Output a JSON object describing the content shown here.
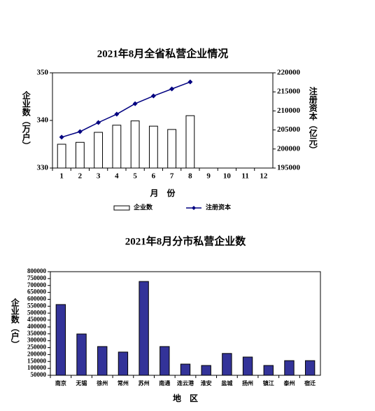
{
  "chart_data": [
    {
      "type": "bar",
      "title": "2021年8月全省私营企业情况",
      "x_label": "月　份",
      "y_label": "企业数（万户）",
      "y2_label": "注册资本（亿元）",
      "categories": [
        "1",
        "2",
        "3",
        "4",
        "5",
        "6",
        "7",
        "8",
        "9",
        "10",
        "11",
        "12"
      ],
      "series": [
        {
          "name": "企业数",
          "type": "bar",
          "color": "#ffffff",
          "values": [
            335.0,
            335.4,
            337.5,
            339.0,
            339.9,
            338.8,
            338.1,
            341.0,
            null,
            null,
            null,
            null
          ]
        },
        {
          "name": "注册资本",
          "type": "line",
          "axis": "y2",
          "color": "#000080",
          "values": [
            203100,
            204560,
            206950,
            209150,
            211900,
            213930,
            215770,
            217600,
            null,
            null,
            null,
            null
          ]
        }
      ],
      "ylim": [
        330,
        350
      ],
      "yticks": [
        330,
        340,
        350
      ],
      "y2lim": [
        195000,
        220000
      ],
      "y2ticks": [
        195000,
        200000,
        205000,
        210000,
        215000,
        220000
      ],
      "legend": "bottom"
    },
    {
      "type": "bar",
      "title": "2021年8月分市私营企业数",
      "x_label": "地　区",
      "y_label": "企业数（户）",
      "categories": [
        "南京",
        "无锡",
        "徐州",
        "常州",
        "苏州",
        "南通",
        "连云港",
        "淮安",
        "盐城",
        "扬州",
        "镇江",
        "泰州",
        "宿迁"
      ],
      "values": [
        562000,
        349000,
        258000,
        218000,
        729000,
        258000,
        131000,
        121000,
        208000,
        182000,
        121000,
        156000,
        156000
      ],
      "color": "#333399",
      "ylim": [
        50000,
        800000
      ],
      "yticks": [
        50000,
        100000,
        150000,
        200000,
        250000,
        300000,
        350000,
        400000,
        450000,
        500000,
        550000,
        600000,
        650000,
        700000,
        750000,
        800000
      ]
    }
  ]
}
